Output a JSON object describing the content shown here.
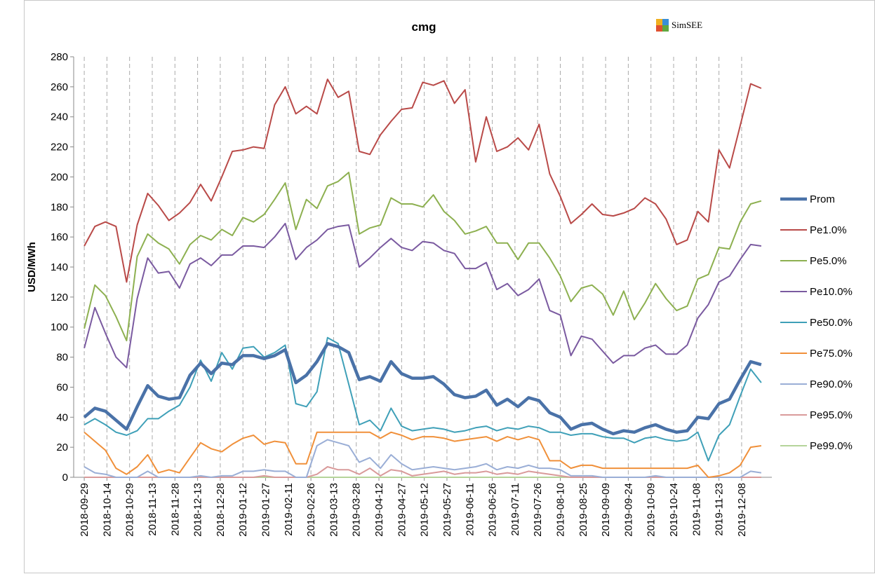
{
  "chart_data": {
    "type": "line",
    "title": "cmg",
    "logo_text": "SimSEE",
    "y_label": "USD/MWh",
    "x": [
      "2018-09-29",
      "2018-10-06",
      "2018-10-13",
      "2018-10-20",
      "2018-10-27",
      "2018-11-03",
      "2018-11-10",
      "2018-11-17",
      "2018-11-24",
      "2018-12-01",
      "2018-12-08",
      "2018-12-15",
      "2018-12-22",
      "2018-12-29",
      "2019-01-05",
      "2019-01-12",
      "2019-01-19",
      "2019-01-26",
      "2019-02-02",
      "2019-02-09",
      "2019-02-16",
      "2019-02-23",
      "2019-03-02",
      "2019-03-09",
      "2019-03-16",
      "2019-03-23",
      "2019-03-30",
      "2019-04-06",
      "2019-04-13",
      "2019-04-20",
      "2019-04-27",
      "2019-05-04",
      "2019-05-11",
      "2019-05-18",
      "2019-05-25",
      "2019-06-01",
      "2019-06-08",
      "2019-06-15",
      "2019-06-22",
      "2019-06-29",
      "2019-07-06",
      "2019-07-13",
      "2019-07-20",
      "2019-07-27",
      "2019-08-03",
      "2019-08-10",
      "2019-08-17",
      "2019-08-24",
      "2019-08-31",
      "2019-09-07",
      "2019-09-14",
      "2019-09-21",
      "2019-09-28",
      "2019-10-05",
      "2019-10-12",
      "2019-10-19",
      "2019-10-26",
      "2019-11-02",
      "2019-11-09",
      "2019-11-16",
      "2019-11-23",
      "2019-11-30",
      "2019-12-07",
      "2019-12-14",
      "2019-12-21"
    ],
    "xlim": [
      "2018-09-22",
      "2019-12-28"
    ],
    "xticks": [
      "2018-09-29",
      "2018-10-14",
      "2018-10-29",
      "2018-11-13",
      "2018-11-28",
      "2018-12-13",
      "2018-12-28",
      "2019-01-12",
      "2019-01-27",
      "2019-02-11",
      "2019-02-26",
      "2019-03-13",
      "2019-03-28",
      "2019-04-12",
      "2019-04-27",
      "2019-05-12",
      "2019-05-27",
      "2019-06-11",
      "2019-06-26",
      "2019-07-11",
      "2019-07-26",
      "2019-08-10",
      "2019-08-25",
      "2019-09-09",
      "2019-09-24",
      "2019-10-09",
      "2019-10-24",
      "2019-11-08",
      "2019-11-23",
      "2019-12-08"
    ],
    "ylim": [
      0,
      280
    ],
    "yticks": [
      0,
      20,
      40,
      60,
      80,
      100,
      120,
      140,
      160,
      180,
      200,
      220,
      240,
      260,
      280
    ],
    "x_grid": true,
    "legend": "right",
    "series": [
      {
        "name": "Prom",
        "color": "#4a72a8",
        "line_width": 4.5,
        "values": [
          40,
          46,
          44,
          38,
          32,
          47,
          61,
          54,
          52,
          53,
          68,
          76,
          69,
          76,
          75,
          81,
          81,
          79,
          81,
          85,
          63,
          68,
          77,
          89,
          87,
          83,
          65,
          67,
          64,
          77,
          69,
          66,
          66,
          67,
          62,
          55,
          53,
          54,
          58,
          48,
          52,
          47,
          53,
          51,
          43,
          40,
          32,
          35,
          36,
          32,
          29,
          31,
          30,
          33,
          35,
          32,
          30,
          31,
          40,
          39,
          49,
          52,
          65,
          77,
          75
        ]
      },
      {
        "name": "Pe1.0%",
        "color": "#b94a48",
        "line_width": 2,
        "values": [
          154,
          167,
          170,
          167,
          130,
          168,
          189,
          181,
          171,
          176,
          183,
          195,
          184,
          200,
          217,
          218,
          220,
          219,
          248,
          260,
          242,
          247,
          242,
          265,
          253,
          257,
          217,
          215,
          228,
          237,
          245,
          246,
          263,
          261,
          264,
          249,
          258,
          210,
          240,
          217,
          220,
          226,
          218,
          235,
          202,
          187,
          169,
          175,
          182,
          175,
          174,
          176,
          179,
          186,
          182,
          172,
          155,
          158,
          177,
          170,
          218,
          206,
          234,
          262,
          259
        ]
      },
      {
        "name": "Pe5.0%",
        "color": "#8db050",
        "line_width": 2,
        "values": [
          99,
          128,
          121,
          107,
          91,
          147,
          162,
          156,
          152,
          142,
          155,
          161,
          158,
          165,
          161,
          173,
          170,
          175,
          185,
          196,
          165,
          185,
          179,
          194,
          197,
          203,
          162,
          166,
          168,
          186,
          182,
          182,
          180,
          188,
          177,
          171,
          162,
          164,
          167,
          156,
          156,
          145,
          156,
          156,
          146,
          134,
          117,
          126,
          128,
          122,
          108,
          124,
          105,
          116,
          129,
          119,
          111,
          114,
          132,
          135,
          153,
          152,
          170,
          182,
          184
        ]
      },
      {
        "name": "Pe10.0%",
        "color": "#7a5aa0",
        "line_width": 2,
        "values": [
          86,
          113,
          96,
          80,
          73,
          119,
          146,
          136,
          137,
          126,
          142,
          146,
          141,
          148,
          148,
          154,
          154,
          153,
          160,
          169,
          145,
          153,
          158,
          165,
          167,
          168,
          140,
          146,
          153,
          159,
          153,
          151,
          157,
          156,
          151,
          149,
          139,
          139,
          143,
          125,
          129,
          121,
          125,
          132,
          111,
          108,
          81,
          94,
          92,
          84,
          76,
          81,
          81,
          86,
          88,
          82,
          82,
          88,
          106,
          115,
          130,
          134,
          145,
          155,
          154
        ]
      },
      {
        "name": "Pe50.0%",
        "color": "#3fa0b8",
        "line_width": 2,
        "values": [
          35,
          39,
          35,
          30,
          28,
          31,
          39,
          39,
          44,
          48,
          60,
          78,
          64,
          83,
          72,
          86,
          87,
          80,
          83,
          88,
          49,
          47,
          57,
          93,
          89,
          62,
          35,
          38,
          31,
          46,
          34,
          31,
          32,
          33,
          32,
          30,
          31,
          33,
          34,
          31,
          33,
          32,
          34,
          33,
          30,
          30,
          28,
          29,
          29,
          27,
          26,
          26,
          23,
          26,
          27,
          25,
          24,
          25,
          30,
          11,
          28,
          35,
          54,
          72,
          63
        ]
      },
      {
        "name": "Pe75.0%",
        "color": "#f0903a",
        "line_width": 2,
        "values": [
          30,
          24,
          18,
          6,
          2,
          7,
          15,
          3,
          5,
          3,
          13,
          23,
          19,
          17,
          22,
          26,
          28,
          22,
          24,
          23,
          9,
          9,
          30,
          30,
          30,
          30,
          30,
          30,
          26,
          30,
          28,
          25,
          27,
          27,
          26,
          24,
          25,
          26,
          27,
          24,
          27,
          25,
          27,
          25,
          11,
          11,
          6,
          8,
          8,
          6,
          6,
          6,
          6,
          6,
          6,
          6,
          6,
          6,
          8,
          0,
          1,
          3,
          8,
          20,
          21
        ]
      },
      {
        "name": "Pe90.0%",
        "color": "#9aaed6",
        "line_width": 2,
        "values": [
          7,
          3,
          2,
          0,
          0,
          0,
          4,
          0,
          0,
          0,
          0,
          1,
          0,
          1,
          1,
          4,
          4,
          5,
          4,
          4,
          0,
          0,
          21,
          25,
          23,
          21,
          10,
          13,
          6,
          15,
          9,
          5,
          6,
          7,
          6,
          5,
          6,
          7,
          9,
          5,
          7,
          6,
          8,
          6,
          6,
          5,
          1,
          1,
          1,
          0,
          0,
          0,
          0,
          0,
          1,
          0,
          0,
          0,
          0,
          0,
          0,
          0,
          0,
          4,
          3
        ]
      },
      {
        "name": "Pe95.0%",
        "color": "#d99a9a",
        "line_width": 2,
        "values": [
          0,
          0,
          0,
          0,
          0,
          0,
          0,
          0,
          0,
          0,
          0,
          0,
          0,
          0,
          0,
          0,
          0,
          1,
          0,
          0,
          0,
          0,
          2,
          7,
          5,
          5,
          2,
          6,
          1,
          5,
          4,
          1,
          2,
          3,
          4,
          2,
          3,
          3,
          4,
          2,
          3,
          2,
          4,
          3,
          2,
          1,
          0,
          0,
          0,
          0,
          0,
          0,
          0,
          0,
          0,
          0,
          0,
          0,
          0,
          0,
          0,
          0,
          0,
          0,
          0
        ]
      },
      {
        "name": "Pe99.0%",
        "color": "#b5d49a",
        "line_width": 2,
        "values": [
          0,
          0,
          0,
          0,
          0,
          0,
          0,
          0,
          0,
          0,
          0,
          0,
          0,
          0,
          0,
          0,
          0,
          0,
          0,
          0,
          0,
          0,
          0,
          0,
          0,
          0,
          0,
          0,
          0,
          0,
          0,
          0,
          0,
          0,
          0,
          0,
          0,
          0,
          0,
          0,
          0,
          0,
          0,
          0,
          0,
          0,
          0,
          0,
          0,
          0,
          0,
          0,
          0,
          0,
          0,
          0,
          0,
          0,
          0,
          0,
          0,
          0,
          0,
          0,
          0
        ]
      }
    ]
  }
}
